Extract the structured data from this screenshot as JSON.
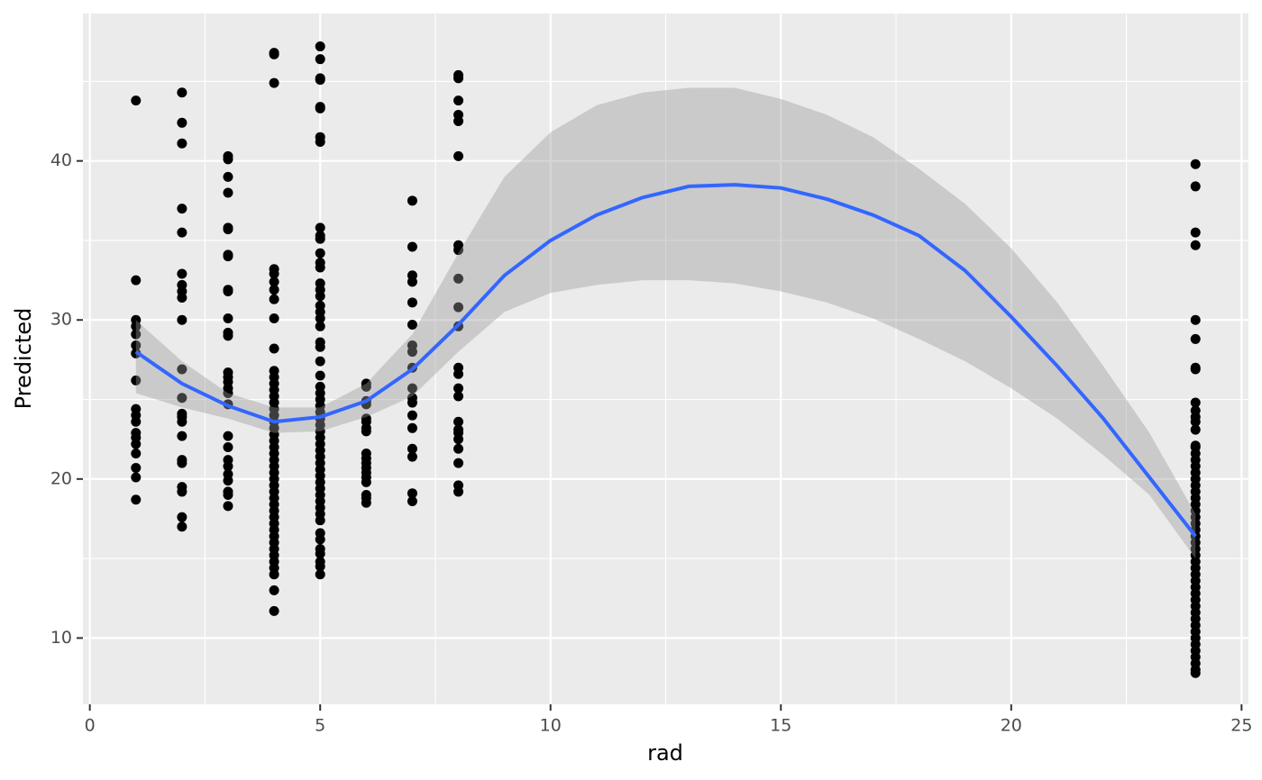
{
  "chart_data": {
    "type": "scatter",
    "xlabel": "rad",
    "ylabel": "Predicted",
    "xlim": [
      -0.15,
      25.15
    ],
    "ylim": [
      5.83,
      49.27
    ],
    "xticks": [
      0,
      5,
      10,
      15,
      20,
      25
    ],
    "yticks": [
      10,
      20,
      30,
      40
    ],
    "xminor": [
      2.5,
      7.5,
      12.5,
      17.5,
      22.5
    ],
    "yminor": [
      15,
      25,
      35,
      45
    ],
    "grid": true,
    "point_color": "#000000",
    "points": [
      {
        "x": 1,
        "y": [
          43.8,
          32.5,
          30.0,
          29.6,
          29.1,
          28.4,
          27.9,
          26.2,
          24.4,
          24.0,
          23.6,
          22.9,
          22.6,
          22.2,
          21.6,
          20.7,
          20.1,
          18.7
        ]
      },
      {
        "x": 2,
        "y": [
          44.3,
          42.4,
          41.1,
          37.0,
          35.5,
          32.9,
          32.2,
          31.8,
          31.4,
          30.0,
          26.9,
          25.1,
          24.1,
          23.9,
          23.6,
          22.7,
          21.2,
          21.0,
          19.5,
          19.2,
          17.6,
          17.0
        ]
      },
      {
        "x": 3,
        "y": [
          40.3,
          40.1,
          39.0,
          38.0,
          35.8,
          35.7,
          34.1,
          34.0,
          31.9,
          31.8,
          30.1,
          29.2,
          29.0,
          26.7,
          26.4,
          26.1,
          25.7,
          25.4,
          24.7,
          22.7,
          22.0,
          21.2,
          20.8,
          20.3,
          19.9,
          19.2,
          19.0,
          18.3
        ]
      },
      {
        "x": 4,
        "y": [
          46.8,
          46.7,
          44.9,
          33.2,
          32.9,
          32.4,
          31.9,
          31.3,
          30.1,
          28.2,
          26.8,
          26.4,
          26.0,
          25.6,
          25.2,
          24.8,
          24.4,
          24.0,
          23.6,
          23.2,
          22.8,
          22.4,
          22.0,
          21.6,
          21.2,
          20.8,
          20.4,
          20.0,
          19.6,
          19.2,
          18.8,
          18.4,
          18.0,
          17.6,
          17.2,
          16.8,
          16.4,
          16.0,
          15.6,
          15.2,
          14.8,
          14.4,
          14.0,
          13.0,
          11.7
        ]
      },
      {
        "x": 5,
        "y": [
          47.2,
          46.4,
          45.2,
          45.1,
          43.4,
          43.3,
          41.5,
          41.2,
          35.8,
          35.3,
          35.1,
          34.2,
          33.6,
          33.3,
          32.3,
          31.9,
          31.5,
          30.9,
          30.5,
          30.1,
          29.6,
          28.6,
          28.3,
          27.4,
          26.5,
          25.8,
          25.4,
          25.0,
          24.6,
          24.2,
          23.8,
          23.4,
          23.0,
          22.6,
          22.2,
          21.8,
          21.4,
          21.0,
          20.6,
          20.2,
          19.8,
          19.4,
          19.0,
          18.6,
          18.2,
          17.8,
          17.4,
          16.6,
          16.2,
          15.6,
          15.3,
          14.8,
          14.5,
          14.0
        ]
      },
      {
        "x": 6,
        "y": [
          26.0,
          25.8,
          24.9,
          24.7,
          23.8,
          23.6,
          23.2,
          23.0,
          21.6,
          21.3,
          21.0,
          20.7,
          20.4,
          20.1,
          19.8,
          19.0,
          18.8,
          18.5
        ]
      },
      {
        "x": 7,
        "y": [
          37.5,
          34.6,
          32.8,
          32.4,
          31.1,
          29.7,
          28.4,
          28.0,
          27.0,
          25.7,
          25.1,
          24.8,
          24.0,
          23.2,
          21.9,
          21.4,
          19.1,
          18.6
        ]
      },
      {
        "x": 8,
        "y": [
          45.4,
          45.2,
          43.8,
          42.9,
          42.5,
          40.3,
          34.7,
          34.4,
          32.6,
          30.8,
          29.6,
          27.0,
          26.6,
          25.7,
          25.2,
          23.6,
          23.1,
          22.9,
          22.5,
          21.9,
          21.0,
          19.6,
          19.2
        ]
      },
      {
        "x": 24,
        "y": [
          39.8,
          38.4,
          35.5,
          34.7,
          30.0,
          28.8,
          27.0,
          26.9,
          24.8,
          24.3,
          23.9,
          23.6,
          23.1,
          22.1,
          22.0,
          21.6,
          21.2,
          20.8,
          20.4,
          20.0,
          19.6,
          19.2,
          18.8,
          18.4,
          18.0,
          17.6,
          17.2,
          16.8,
          16.4,
          16.0,
          15.6,
          15.2,
          14.8,
          14.4,
          14.0,
          13.6,
          13.2,
          12.8,
          12.4,
          12.0,
          11.6,
          11.2,
          10.8,
          10.4,
          10.0,
          9.6,
          9.2,
          8.8,
          8.4,
          8.0,
          7.8
        ]
      }
    ],
    "smooth": {
      "color": "#3366ff",
      "band_color": "#999999",
      "x": [
        1,
        2,
        3,
        4,
        5,
        6,
        7,
        8,
        9,
        10,
        11,
        12,
        13,
        14,
        15,
        16,
        17,
        18,
        19,
        20,
        21,
        22,
        23,
        24
      ],
      "values": [
        28.0,
        26.0,
        24.6,
        23.6,
        23.9,
        24.9,
        26.9,
        29.7,
        32.8,
        35.0,
        36.6,
        37.7,
        38.4,
        38.5,
        38.3,
        37.6,
        36.6,
        35.3,
        33.1,
        30.2,
        27.1,
        23.8,
        20.1,
        16.4
      ],
      "upper": [
        30.0,
        27.4,
        25.4,
        24.5,
        24.5,
        26.0,
        29.1,
        34.2,
        39.0,
        41.8,
        43.5,
        44.3,
        44.6,
        44.6,
        43.9,
        42.9,
        41.5,
        39.5,
        37.3,
        34.5,
        31.1,
        27.1,
        22.9,
        17.8
      ],
      "lower": [
        25.4,
        24.5,
        23.8,
        22.9,
        23.0,
        23.9,
        25.2,
        28.0,
        30.5,
        31.7,
        32.2,
        32.5,
        32.5,
        32.3,
        31.8,
        31.1,
        30.1,
        28.8,
        27.4,
        25.7,
        23.8,
        21.5,
        19.0,
        15.0
      ]
    }
  }
}
